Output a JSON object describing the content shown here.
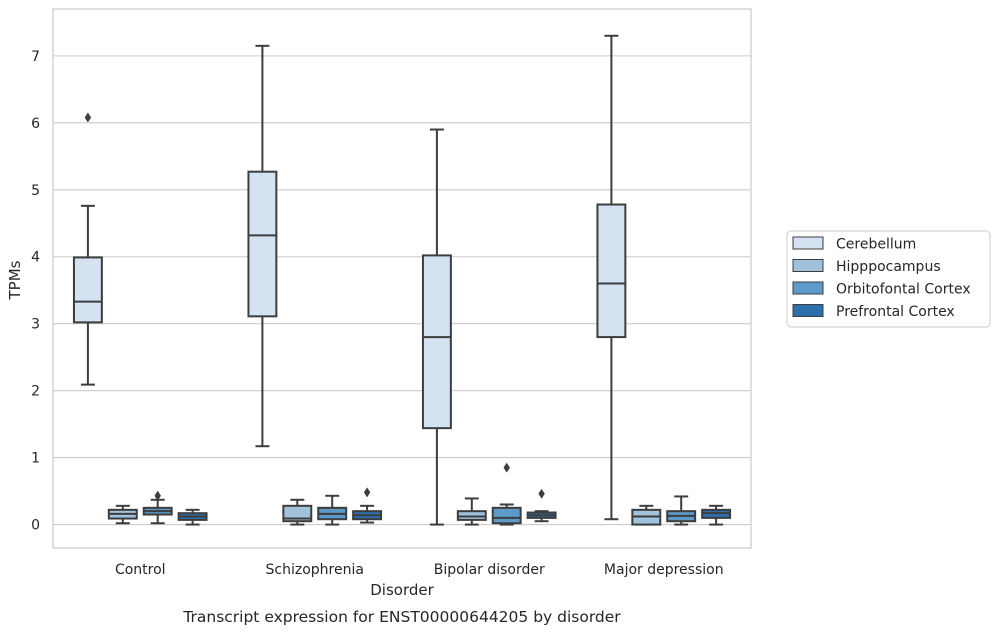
{
  "chart_data": {
    "type": "box",
    "title": "",
    "caption": "Transcript expression for ENST00000644205 by disorder",
    "xlabel": "Disorder",
    "ylabel": "TPMs",
    "ylim": [
      -0.35,
      7.7
    ],
    "yticks": [
      0,
      1,
      2,
      3,
      4,
      5,
      6,
      7
    ],
    "grid": "horizontal",
    "legend_position": "right",
    "categories": [
      "Control",
      "Schizophrenia",
      "Bipolar disorder",
      "Major depression"
    ],
    "series": [
      {
        "name": "Cerebellum",
        "color": "#d4e2f1",
        "boxes": [
          {
            "whislo": 2.09,
            "q1": 3.02,
            "med": 3.33,
            "q3": 3.99,
            "whishi": 4.76,
            "fliers": [
              6.08
            ]
          },
          {
            "whislo": 1.17,
            "q1": 3.11,
            "med": 4.32,
            "q3": 5.27,
            "whishi": 7.15,
            "fliers": []
          },
          {
            "whislo": 0.0,
            "q1": 1.44,
            "med": 2.8,
            "q3": 4.02,
            "whishi": 5.9,
            "fliers": []
          },
          {
            "whislo": 0.08,
            "q1": 2.8,
            "med": 3.6,
            "q3": 4.78,
            "whishi": 7.3,
            "fliers": []
          }
        ]
      },
      {
        "name": "Hipppocampus",
        "color": "#a0c2dd",
        "boxes": [
          {
            "whislo": 0.02,
            "q1": 0.09,
            "med": 0.16,
            "q3": 0.22,
            "whishi": 0.28,
            "fliers": []
          },
          {
            "whislo": 0.0,
            "q1": 0.05,
            "med": 0.09,
            "q3": 0.28,
            "whishi": 0.37,
            "fliers": []
          },
          {
            "whislo": 0.0,
            "q1": 0.07,
            "med": 0.12,
            "q3": 0.2,
            "whishi": 0.39,
            "fliers": []
          },
          {
            "whislo": 0.0,
            "q1": 0.0,
            "med": 0.12,
            "q3": 0.22,
            "whishi": 0.28,
            "fliers": []
          }
        ]
      },
      {
        "name": "Orbitofontal Cortex",
        "color": "#5b9ac9",
        "boxes": [
          {
            "whislo": 0.02,
            "q1": 0.15,
            "med": 0.2,
            "q3": 0.25,
            "whishi": 0.37,
            "fliers": [
              0.43
            ]
          },
          {
            "whislo": 0.0,
            "q1": 0.08,
            "med": 0.16,
            "q3": 0.25,
            "whishi": 0.43,
            "fliers": []
          },
          {
            "whislo": 0.0,
            "q1": 0.02,
            "med": 0.1,
            "q3": 0.25,
            "whishi": 0.3,
            "fliers": [
              0.85
            ]
          },
          {
            "whislo": 0.0,
            "q1": 0.05,
            "med": 0.13,
            "q3": 0.2,
            "whishi": 0.42,
            "fliers": []
          }
        ]
      },
      {
        "name": "Prefrontal Cortex",
        "color": "#2c6fac",
        "boxes": [
          {
            "whislo": 0.0,
            "q1": 0.07,
            "med": 0.12,
            "q3": 0.17,
            "whishi": 0.22,
            "fliers": []
          },
          {
            "whislo": 0.03,
            "q1": 0.08,
            "med": 0.14,
            "q3": 0.2,
            "whishi": 0.28,
            "fliers": [
              0.48
            ]
          },
          {
            "whislo": 0.05,
            "q1": 0.1,
            "med": 0.14,
            "q3": 0.18,
            "whishi": 0.2,
            "fliers": [
              0.46
            ]
          },
          {
            "whislo": 0.0,
            "q1": 0.1,
            "med": 0.17,
            "q3": 0.22,
            "whishi": 0.28,
            "fliers": []
          }
        ]
      }
    ]
  }
}
